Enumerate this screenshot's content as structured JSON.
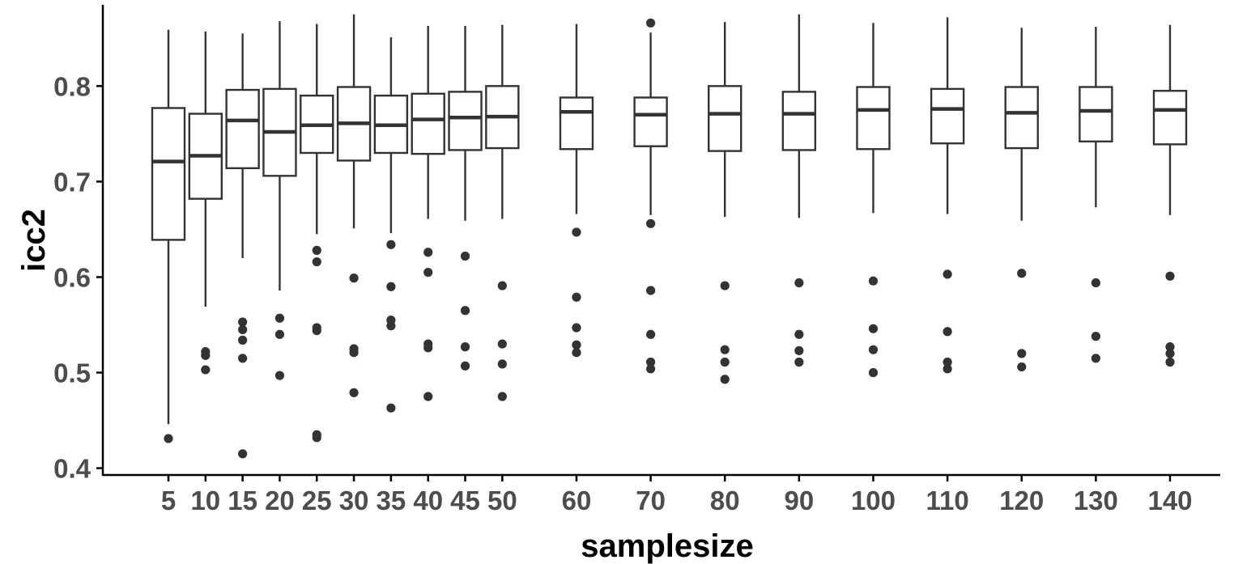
{
  "chart_data": {
    "type": "boxplot",
    "xlabel": "samplesize",
    "ylabel": "icc2",
    "ylim": [
      0.392,
      0.885
    ],
    "y_ticks": [
      "0.4",
      "0.5",
      "0.6",
      "0.7",
      "0.8"
    ],
    "grid": false,
    "legend": "none",
    "colors": {
      "box_outline": "#333333",
      "box_fill": "#ffffff",
      "outlier": "#333333",
      "tick_text": "#4d4d4d",
      "axis": "#000000"
    },
    "categories": [
      "5",
      "10",
      "15",
      "20",
      "25",
      "30",
      "35",
      "40",
      "45",
      "50",
      "60",
      "70",
      "80",
      "90",
      "100",
      "110",
      "120",
      "130",
      "140"
    ],
    "boxes": [
      {
        "x": 5,
        "min": 0.446,
        "q1": 0.639,
        "median": 0.721,
        "q3": 0.777,
        "max": 0.859,
        "outliers": [
          0.431
        ]
      },
      {
        "x": 10,
        "min": 0.569,
        "q1": 0.682,
        "median": 0.727,
        "q3": 0.771,
        "max": 0.857,
        "outliers": [
          0.522,
          0.518,
          0.503
        ]
      },
      {
        "x": 15,
        "min": 0.62,
        "q1": 0.714,
        "median": 0.764,
        "q3": 0.796,
        "max": 0.855,
        "outliers": [
          0.553,
          0.545,
          0.534,
          0.515,
          0.415
        ]
      },
      {
        "x": 20,
        "min": 0.586,
        "q1": 0.706,
        "median": 0.752,
        "q3": 0.797,
        "max": 0.868,
        "outliers": [
          0.557,
          0.54,
          0.497
        ]
      },
      {
        "x": 25,
        "min": 0.645,
        "q1": 0.73,
        "median": 0.759,
        "q3": 0.79,
        "max": 0.865,
        "outliers": [
          0.628,
          0.616,
          0.547,
          0.544,
          0.435,
          0.432
        ]
      },
      {
        "x": 30,
        "min": 0.651,
        "q1": 0.722,
        "median": 0.761,
        "q3": 0.799,
        "max": 0.875,
        "outliers": [
          0.599,
          0.525,
          0.521,
          0.479
        ]
      },
      {
        "x": 35,
        "min": 0.646,
        "q1": 0.73,
        "median": 0.759,
        "q3": 0.79,
        "max": 0.851,
        "outliers": [
          0.634,
          0.59,
          0.555,
          0.549,
          0.463
        ]
      },
      {
        "x": 40,
        "min": 0.661,
        "q1": 0.729,
        "median": 0.765,
        "q3": 0.792,
        "max": 0.863,
        "outliers": [
          0.626,
          0.605,
          0.53,
          0.526,
          0.475
        ]
      },
      {
        "x": 45,
        "min": 0.659,
        "q1": 0.733,
        "median": 0.767,
        "q3": 0.794,
        "max": 0.863,
        "outliers": [
          0.622,
          0.565,
          0.527,
          0.507
        ]
      },
      {
        "x": 50,
        "min": 0.661,
        "q1": 0.735,
        "median": 0.768,
        "q3": 0.8,
        "max": 0.864,
        "outliers": [
          0.591,
          0.53,
          0.509,
          0.475
        ]
      },
      {
        "x": 60,
        "min": 0.666,
        "q1": 0.734,
        "median": 0.773,
        "q3": 0.788,
        "max": 0.865,
        "outliers": [
          0.647,
          0.579,
          0.547,
          0.529,
          0.521
        ]
      },
      {
        "x": 70,
        "min": 0.665,
        "q1": 0.737,
        "median": 0.77,
        "q3": 0.788,
        "max": 0.856,
        "outliers": [
          0.866,
          0.656,
          0.586,
          0.54,
          0.511,
          0.504
        ]
      },
      {
        "x": 80,
        "min": 0.663,
        "q1": 0.732,
        "median": 0.771,
        "q3": 0.8,
        "max": 0.867,
        "outliers": [
          0.591,
          0.524,
          0.511,
          0.493
        ]
      },
      {
        "x": 90,
        "min": 0.662,
        "q1": 0.733,
        "median": 0.771,
        "q3": 0.794,
        "max": 0.875,
        "outliers": [
          0.594,
          0.54,
          0.523,
          0.511
        ]
      },
      {
        "x": 100,
        "min": 0.667,
        "q1": 0.734,
        "median": 0.775,
        "q3": 0.799,
        "max": 0.866,
        "outliers": [
          0.596,
          0.546,
          0.524,
          0.5
        ]
      },
      {
        "x": 110,
        "min": 0.666,
        "q1": 0.74,
        "median": 0.776,
        "q3": 0.797,
        "max": 0.872,
        "outliers": [
          0.603,
          0.543,
          0.511,
          0.504
        ]
      },
      {
        "x": 120,
        "min": 0.659,
        "q1": 0.735,
        "median": 0.772,
        "q3": 0.799,
        "max": 0.861,
        "outliers": [
          0.604,
          0.52,
          0.506
        ]
      },
      {
        "x": 130,
        "min": 0.673,
        "q1": 0.742,
        "median": 0.774,
        "q3": 0.799,
        "max": 0.862,
        "outliers": [
          0.594,
          0.538,
          0.515
        ]
      },
      {
        "x": 140,
        "min": 0.665,
        "q1": 0.739,
        "median": 0.775,
        "q3": 0.795,
        "max": 0.864,
        "outliers": [
          0.601,
          0.527,
          0.52,
          0.511
        ]
      }
    ]
  }
}
